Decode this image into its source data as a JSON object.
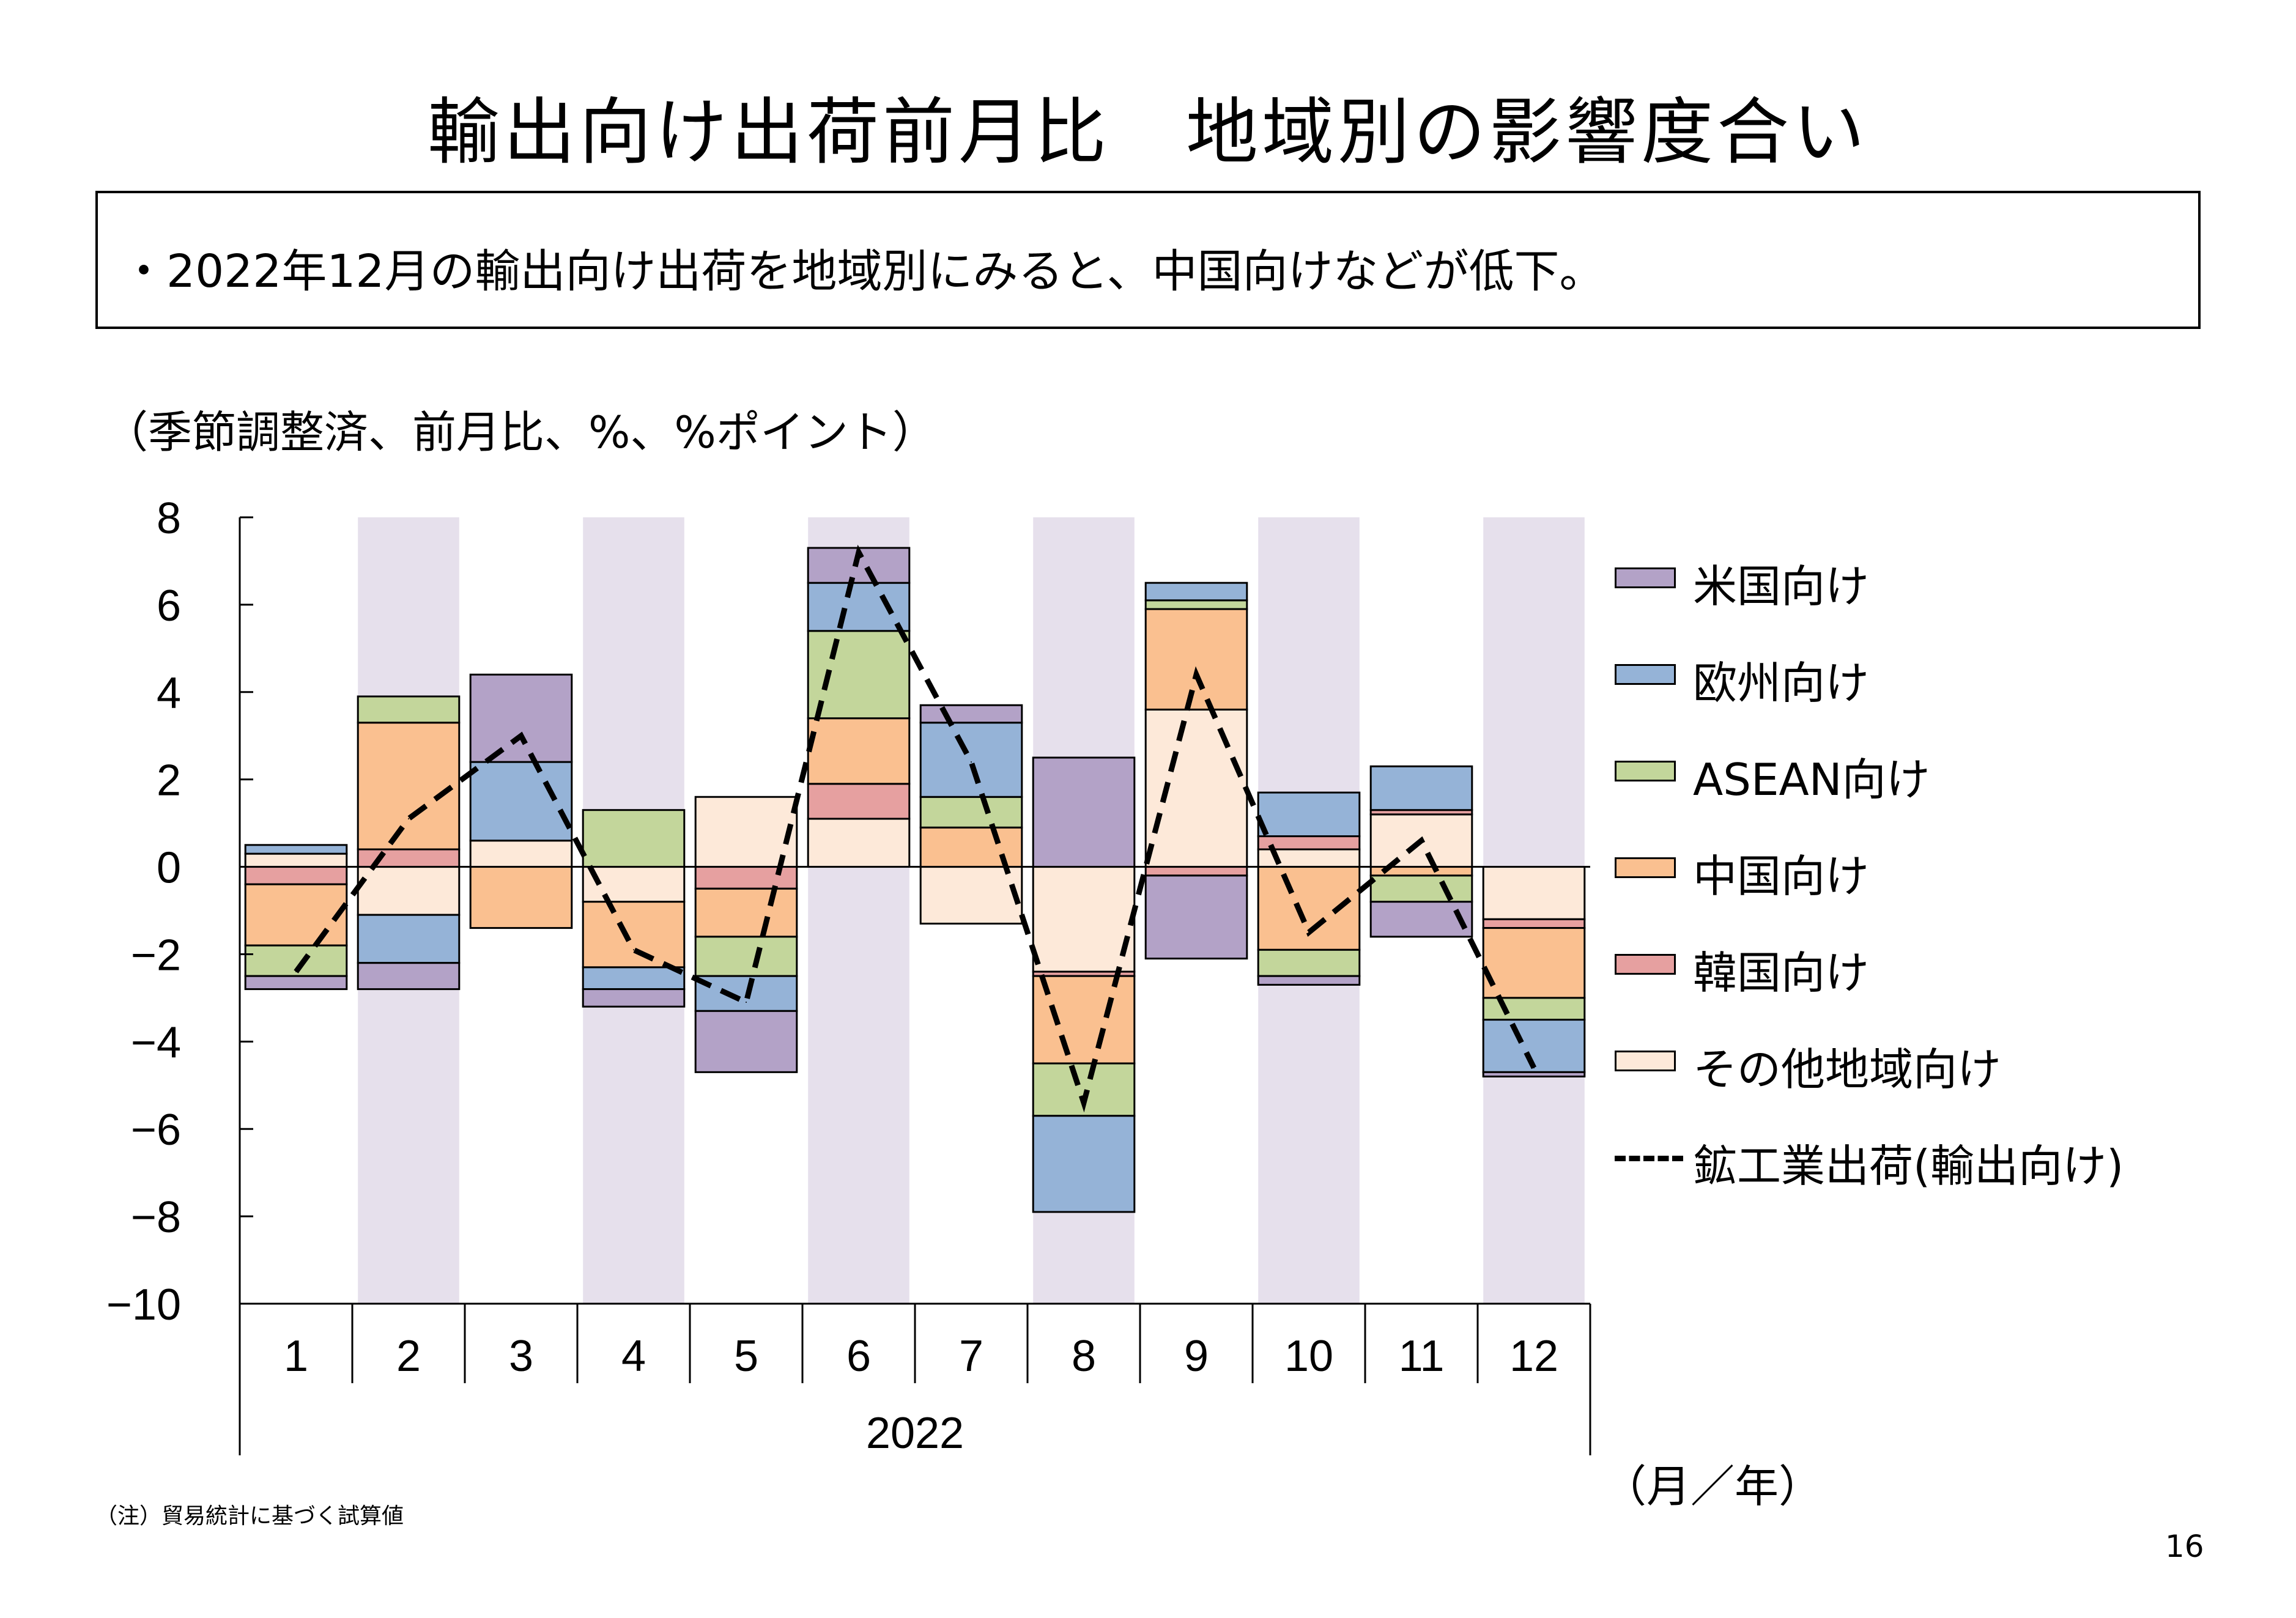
{
  "title": "輸出向け出荷前月比　地域別の影響度合い",
  "summary": "・2022年12月の輸出向け出荷を地域別にみると、中国向けなどが低下。",
  "unit_note": "（季節調整済、前月比、%、%ポイント）",
  "axis_unit": "（月／年）",
  "footnote": "（注）貿易統計に基づく試算値",
  "page_number": "16",
  "chart_data": {
    "type": "bar",
    "stacked": true,
    "categories": [
      "1",
      "2",
      "3",
      "4",
      "5",
      "6",
      "7",
      "8",
      "9",
      "10",
      "11",
      "12"
    ],
    "year_label": "2022",
    "ylim": [
      -10,
      8
    ],
    "yticks": [
      8,
      6,
      4,
      2,
      0,
      -2,
      -4,
      -6,
      -8,
      -10
    ],
    "ytick_labels": [
      "8",
      "6",
      "4",
      "2",
      "0",
      "−2",
      "−4",
      "−6",
      "−8",
      "−10"
    ],
    "shaded_months": [
      "2",
      "4",
      "6",
      "8",
      "10",
      "12"
    ],
    "shade_color": "#e6e0ec",
    "legend_placement": "right",
    "series": [
      {
        "name": "その他地域向け",
        "color": "#fde9d9",
        "values": [
          0.3,
          -1.1,
          0.6,
          -0.8,
          1.6,
          1.1,
          -1.3,
          -2.4,
          3.6,
          0.4,
          1.2,
          -1.2
        ]
      },
      {
        "name": "韓国向け",
        "color": "#e6a0a0",
        "values": [
          -0.4,
          0.4,
          0.0,
          0.0,
          -0.5,
          0.8,
          0.0,
          -0.1,
          -0.2,
          0.3,
          0.1,
          -0.2
        ]
      },
      {
        "name": "中国向け",
        "color": "#fac090",
        "values": [
          -1.4,
          2.9,
          -1.4,
          -1.5,
          -1.1,
          1.5,
          0.9,
          -2.0,
          2.3,
          -1.9,
          -0.2,
          -1.6
        ]
      },
      {
        "name": "ASEAN向け",
        "color": "#c3d69b",
        "values": [
          -0.7,
          0.6,
          0.0,
          1.3,
          -0.9,
          2.0,
          0.7,
          -1.2,
          0.2,
          -0.6,
          -0.6,
          -0.5
        ]
      },
      {
        "name": "欧州向け",
        "color": "#95b3d7",
        "values": [
          0.2,
          -1.1,
          1.8,
          -0.5,
          -0.8,
          1.1,
          1.7,
          -2.2,
          0.4,
          1.0,
          1.0,
          -1.2
        ]
      },
      {
        "name": "米国向け",
        "color": "#b3a2c7",
        "values": [
          -0.3,
          -0.6,
          2.0,
          -0.4,
          -1.4,
          0.8,
          0.4,
          2.5,
          -1.9,
          -0.2,
          -0.8,
          -0.1
        ]
      }
    ],
    "legend_order": [
      "米国向け",
      "欧州向け",
      "ASEAN向け",
      "中国向け",
      "韓国向け",
      "その他地域向け"
    ],
    "line": {
      "name": "鉱工業出荷(輸出向け)",
      "style": "dashed",
      "color": "#000000",
      "values": [
        -2.4,
        1.1,
        3.0,
        -1.9,
        -3.1,
        7.2,
        2.4,
        -5.4,
        4.4,
        -1.5,
        0.6,
        -4.6
      ]
    }
  }
}
